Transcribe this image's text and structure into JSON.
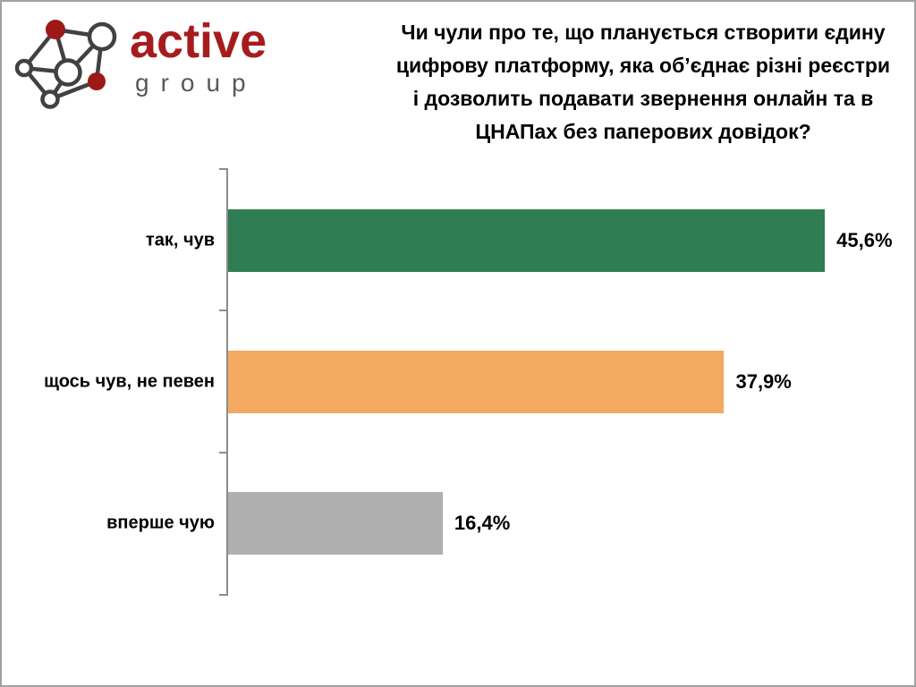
{
  "logo": {
    "brand": "active",
    "sub": "group",
    "brand_color": "#A61C1C",
    "sub_color": "#58595B",
    "node_red": "#9E1818",
    "outline_color": "#414042"
  },
  "chart_data": {
    "type": "bar",
    "orientation": "horizontal",
    "title": "Чи чули про те, що планується створити єдину цифрову платформу, яка об’єднає різні реєстри і дозволить подавати звернення онлайн та в ЦНАПах без паперових довідок?",
    "title_lines": [
      "Чи чули про те, що планується створити єдину",
      "цифрову платформу, яка об’єднає різні реєстри",
      "і дозволить подавати звернення онлайн та в",
      "ЦНАПах без паперових довідок?"
    ],
    "categories": [
      "так, чув",
      "щось чув, не певен",
      "вперше чую"
    ],
    "values": [
      45.6,
      37.9,
      16.4
    ],
    "value_labels": [
      "45,6%",
      "37,9%",
      "16,4%"
    ],
    "colors": [
      "#2F7D52",
      "#F4A963",
      "#AFAFAF"
    ],
    "xlabel": "",
    "ylabel": "",
    "xlim": [
      0,
      50
    ],
    "grid": false,
    "legend": false,
    "axis_note": "single left vertical axis with ticks at category boundaries"
  }
}
